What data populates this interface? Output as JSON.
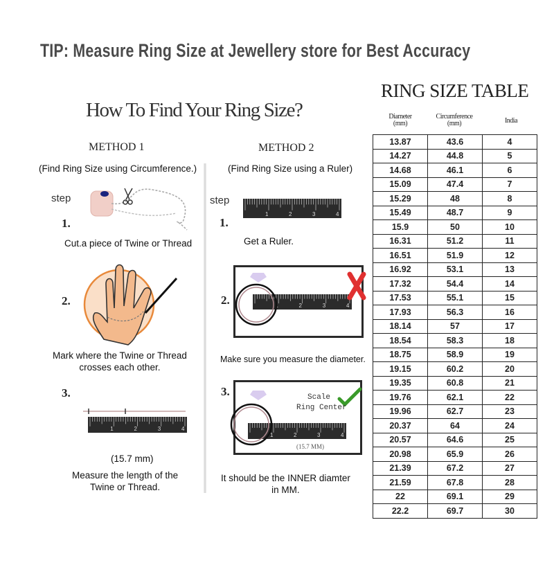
{
  "tip": "TIP: Measure Ring Size at Jewellery store for Best Accuracy",
  "guide": {
    "title": "How To Find Your Ring Size?",
    "method1": {
      "title": "METHOD 1",
      "subtitle": "(Find Ring Size using Circumference.)",
      "step_label": "step",
      "steps": [
        {
          "number": "1.",
          "caption": "Cut.a piece of Twine or Thread"
        },
        {
          "number": "2.",
          "caption_line1": "Mark where the Twine or Thread",
          "caption_line2": "crosses each other."
        },
        {
          "number": "3.",
          "measurement": "(15.7 mm)",
          "caption_line1": "Measure the length of the",
          "caption_line2": "Twine or Thread."
        }
      ]
    },
    "method2": {
      "title": "METHOD 2",
      "subtitle": "(Find Ring Size using a Ruler)",
      "step_label": "step",
      "steps": [
        {
          "number": "1.",
          "caption": "Get a Ruler."
        },
        {
          "number": "2.",
          "caption": "Make sure you measure the diameter."
        },
        {
          "number": "3.",
          "scale_label": "Scale",
          "center_label": "Ring Center",
          "measurement": "(15.7 MM)",
          "caption_line1": "It should be the INNER diamter",
          "caption_line2": "in MM."
        }
      ]
    },
    "ruler_ticks": [
      "1",
      "2",
      "3",
      "4"
    ]
  },
  "ring_table": {
    "title": "RING SIZE TABLE",
    "headers": {
      "diameter_line1": "Diameter",
      "diameter_line2": "(mm)",
      "circumference_line1": "Circumference",
      "circumference_line2": "(mm)",
      "india": "India"
    },
    "rows": [
      [
        "13.87",
        "43.6",
        "4"
      ],
      [
        "14.27",
        "44.8",
        "5"
      ],
      [
        "14.68",
        "46.1",
        "6"
      ],
      [
        "15.09",
        "47.4",
        "7"
      ],
      [
        "15.29",
        "48",
        "8"
      ],
      [
        "15.49",
        "48.7",
        "9"
      ],
      [
        "15.9",
        "50",
        "10"
      ],
      [
        "16.31",
        "51.2",
        "11"
      ],
      [
        "16.51",
        "51.9",
        "12"
      ],
      [
        "16.92",
        "53.1",
        "13"
      ],
      [
        "17.32",
        "54.4",
        "14"
      ],
      [
        "17.53",
        "55.1",
        "15"
      ],
      [
        "17.93",
        "56.3",
        "16"
      ],
      [
        "18.14",
        "57",
        "17"
      ],
      [
        "18.54",
        "58.3",
        "18"
      ],
      [
        "18.75",
        "58.9",
        "19"
      ],
      [
        "19.15",
        "60.2",
        "20"
      ],
      [
        "19.35",
        "60.8",
        "21"
      ],
      [
        "19.76",
        "62.1",
        "22"
      ],
      [
        "19.96",
        "62.7",
        "23"
      ],
      [
        "20.37",
        "64",
        "24"
      ],
      [
        "20.57",
        "64.6",
        "25"
      ],
      [
        "20.98",
        "65.9",
        "26"
      ],
      [
        "21.39",
        "67.2",
        "27"
      ],
      [
        "21.59",
        "67.8",
        "28"
      ],
      [
        "22",
        "69.1",
        "29"
      ],
      [
        "22.2",
        "69.7",
        "30"
      ]
    ]
  },
  "colors": {
    "hand_circle": "#e8893a",
    "wrong_mark": "#e03030",
    "correct_mark": "#3a9a2a",
    "ruler": "#2b2b2b"
  }
}
